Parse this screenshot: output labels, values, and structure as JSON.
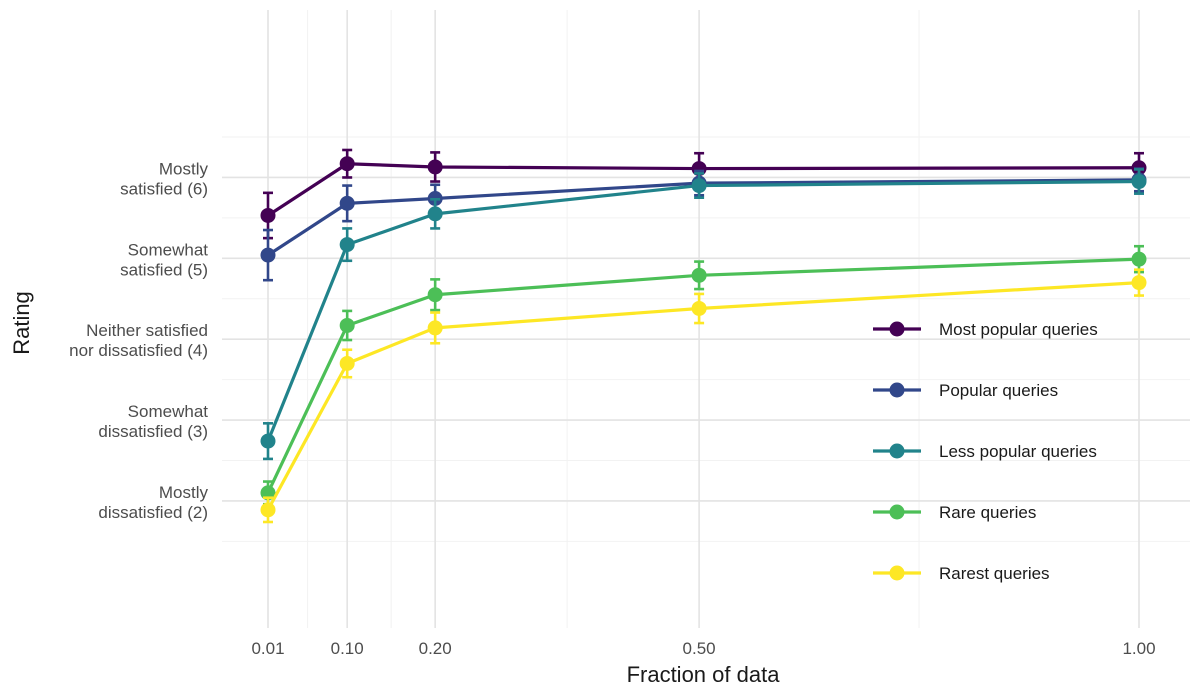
{
  "chart_data": {
    "type": "line",
    "title": "",
    "xlabel": "Fraction of data",
    "ylabel": "Rating",
    "x": [
      0.01,
      0.1,
      0.2,
      0.5,
      1.0
    ],
    "x_tick_values": [
      0.01,
      0.1,
      0.2,
      0.5,
      1.0
    ],
    "x_tick_labels": [
      "0.01",
      "0.10",
      "0.20",
      "0.50",
      "1.00"
    ],
    "y_tick_values": [
      2,
      3,
      4,
      5,
      6
    ],
    "y_tick_labels": [
      [
        "Mostly",
        "dissatisfied (2)"
      ],
      [
        "Somewhat",
        "dissatisfied (3)"
      ],
      [
        "Neither satisfied",
        "nor dissatisfied (4)"
      ],
      [
        "Somewhat",
        "satisfied (5)"
      ],
      [
        "Mostly",
        "satisfied (6)"
      ]
    ],
    "ylim": [
      0.8,
      7.7
    ],
    "grid": true,
    "legend_position": "right",
    "series": [
      {
        "name": "Most popular queries",
        "color": "#440154",
        "values": [
          5.53,
          6.17,
          6.13,
          6.11,
          6.12
        ],
        "err": [
          0.28,
          0.17,
          0.18,
          0.19,
          0.18
        ]
      },
      {
        "name": "Popular queries",
        "color": "#31478a",
        "values": [
          5.04,
          5.68,
          5.74,
          5.93,
          5.97
        ],
        "err": [
          0.31,
          0.22,
          0.17,
          0.15,
          0.14
        ]
      },
      {
        "name": "Less popular queries",
        "color": "#21838b",
        "values": [
          2.74,
          5.17,
          5.55,
          5.9,
          5.95
        ],
        "err": [
          0.22,
          0.2,
          0.18,
          0.15,
          0.15
        ]
      },
      {
        "name": "Rare queries",
        "color": "#4cbf57",
        "values": [
          2.1,
          4.17,
          4.55,
          4.79,
          4.99
        ],
        "err": [
          0.14,
          0.18,
          0.19,
          0.17,
          0.16
        ]
      },
      {
        "name": "Rarest queries",
        "color": "#fde725",
        "values": [
          1.89,
          3.7,
          4.14,
          4.38,
          4.7
        ],
        "err": [
          0.15,
          0.17,
          0.19,
          0.18,
          0.16
        ]
      }
    ]
  }
}
